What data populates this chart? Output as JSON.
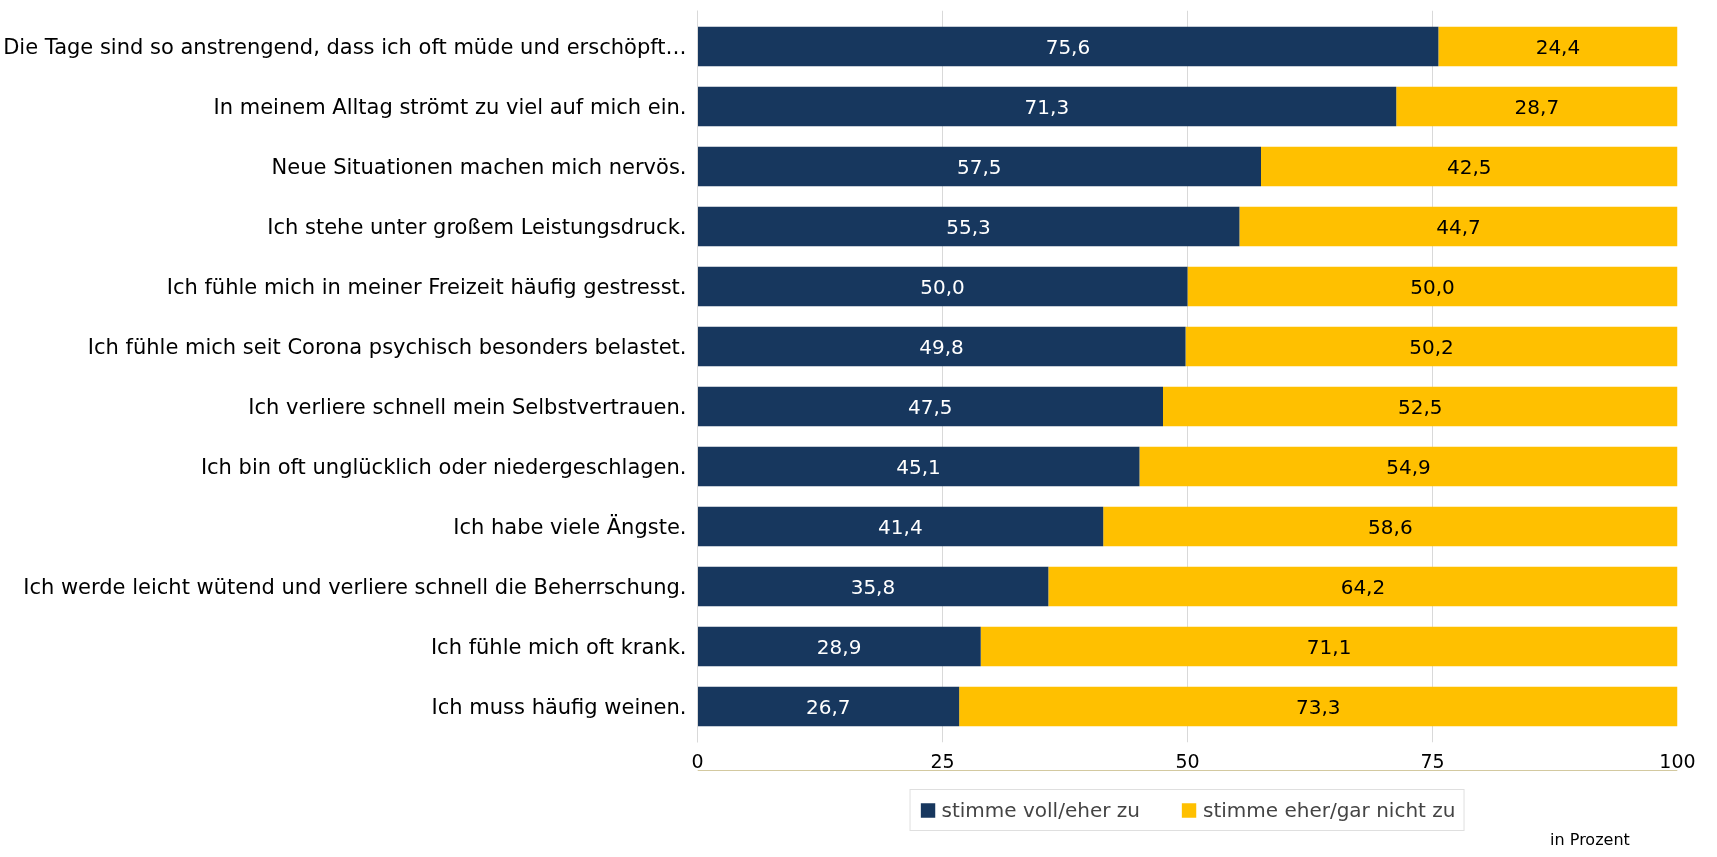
{
  "chart_data": {
    "type": "bar",
    "orientation": "horizontal",
    "stacked": true,
    "categories": [
      "Die Tage sind so anstrengend, dass ich oft müde und erschöpft…",
      "In meinem Alltag strömt zu viel auf mich ein.",
      "Neue Situationen machen mich nervös.",
      "Ich stehe unter großem Leistungsdruck.",
      "Ich fühle mich in meiner Freizeit häufig gestresst.",
      "Ich fühle mich seit Corona psychisch besonders belastet.",
      "Ich verliere schnell mein Selbstvertrauen.",
      "Ich bin oft unglücklich oder niedergeschlagen.",
      "Ich habe viele Ängste.",
      "Ich werde leicht wütend und verliere schnell die Beherrschung.",
      "Ich fühle mich oft krank.",
      "Ich muss häufig weinen."
    ],
    "series": [
      {
        "name": "stimme voll/eher zu",
        "color": "#17375e",
        "values": [
          75.6,
          71.3,
          57.5,
          55.3,
          50.0,
          49.8,
          47.5,
          45.1,
          41.4,
          35.8,
          28.9,
          26.7
        ],
        "value_labels": [
          "75,6",
          "71,3",
          "57,5",
          "55,3",
          "50,0",
          "49,8",
          "47,5",
          "45,1",
          "41,4",
          "35,8",
          "28,9",
          "26,7"
        ]
      },
      {
        "name": "stimme eher/gar nicht zu",
        "color": "#ffc000",
        "values": [
          24.4,
          28.7,
          42.5,
          44.7,
          50.0,
          50.2,
          52.5,
          54.9,
          58.6,
          64.2,
          71.1,
          73.3
        ],
        "value_labels": [
          "24,4",
          "28,7",
          "42,5",
          "44,7",
          "50,0",
          "50,2",
          "52,5",
          "54,9",
          "58,6",
          "64,2",
          "71,1",
          "73,3"
        ]
      }
    ],
    "xlim": [
      0,
      100
    ],
    "xticks": [
      0,
      25,
      50,
      75,
      100
    ],
    "grid": "x",
    "legend": "bottom",
    "annotations": [
      "in Prozent"
    ]
  }
}
